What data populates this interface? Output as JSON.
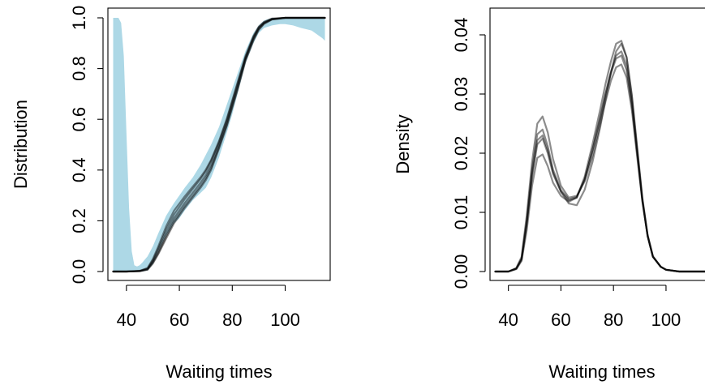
{
  "chart_data": [
    {
      "type": "line",
      "xlabel": "Waiting times",
      "ylabel": "Distribution",
      "xlim": [
        33,
        117
      ],
      "ylim": [
        0,
        1
      ],
      "x_ticks": [
        "40",
        "60",
        "80",
        "100"
      ],
      "y_ticks": [
        "0.0",
        "0.2",
        "0.4",
        "0.6",
        "0.8",
        "1.0"
      ],
      "band_color": "#ADD8E6",
      "line_color": "#000000",
      "band": {
        "x": [
          35,
          36,
          37,
          38,
          39,
          40,
          41,
          42,
          43,
          44,
          45,
          46,
          48,
          50,
          52,
          55,
          58,
          60,
          62,
          65,
          68,
          70,
          72,
          75,
          78,
          80,
          82,
          85,
          88,
          90,
          92,
          95,
          98,
          100,
          103,
          106,
          110,
          114,
          115
        ],
        "upper": [
          1.0,
          1.0,
          1.0,
          0.98,
          0.85,
          0.55,
          0.25,
          0.08,
          0.025,
          0.02,
          0.025,
          0.035,
          0.06,
          0.1,
          0.15,
          0.22,
          0.27,
          0.3,
          0.33,
          0.37,
          0.42,
          0.46,
          0.5,
          0.57,
          0.66,
          0.72,
          0.78,
          0.87,
          0.94,
          0.97,
          0.99,
          1.0,
          1.0,
          1.0,
          1.0,
          1.0,
          1.0,
          1.0,
          1.0
        ],
        "lower": [
          0,
          0,
          0,
          0,
          0,
          0,
          0,
          0,
          0,
          0,
          0,
          0,
          0.005,
          0.03,
          0.08,
          0.14,
          0.19,
          0.21,
          0.24,
          0.28,
          0.31,
          0.33,
          0.37,
          0.45,
          0.55,
          0.62,
          0.7,
          0.82,
          0.9,
          0.94,
          0.96,
          0.97,
          0.975,
          0.975,
          0.97,
          0.96,
          0.95,
          0.92,
          0.91
        ]
      },
      "x": [
        35,
        40,
        45,
        48,
        50,
        52,
        55,
        58,
        60,
        62,
        65,
        68,
        70,
        72,
        75,
        78,
        80,
        82,
        85,
        88,
        90,
        92,
        95,
        100,
        105,
        110,
        115
      ],
      "series": [
        {
          "values": [
            0,
            0,
            0.002,
            0.01,
            0.04,
            0.08,
            0.15,
            0.21,
            0.24,
            0.27,
            0.31,
            0.35,
            0.38,
            0.42,
            0.5,
            0.59,
            0.66,
            0.73,
            0.84,
            0.92,
            0.96,
            0.98,
            0.995,
            1.0,
            1.0,
            1.0,
            1.0
          ]
        },
        {
          "values": [
            0,
            0,
            0.002,
            0.012,
            0.045,
            0.09,
            0.165,
            0.225,
            0.255,
            0.285,
            0.325,
            0.365,
            0.395,
            0.435,
            0.51,
            0.6,
            0.67,
            0.74,
            0.845,
            0.925,
            0.962,
            0.982,
            0.996,
            1.0,
            1.0,
            1.0,
            1.0
          ]
        },
        {
          "values": [
            0,
            0,
            0.002,
            0.008,
            0.035,
            0.072,
            0.138,
            0.198,
            0.228,
            0.258,
            0.298,
            0.338,
            0.368,
            0.408,
            0.49,
            0.58,
            0.65,
            0.72,
            0.835,
            0.915,
            0.955,
            0.978,
            0.994,
            1.0,
            1.0,
            1.0,
            1.0
          ]
        },
        {
          "values": [
            0,
            0,
            0.003,
            0.014,
            0.05,
            0.098,
            0.178,
            0.24,
            0.268,
            0.296,
            0.334,
            0.372,
            0.402,
            0.44,
            0.515,
            0.605,
            0.675,
            0.745,
            0.85,
            0.928,
            0.965,
            0.984,
            0.997,
            1.0,
            1.0,
            1.0,
            1.0
          ]
        },
        {
          "values": [
            0,
            0,
            0.001,
            0.007,
            0.032,
            0.068,
            0.13,
            0.19,
            0.22,
            0.25,
            0.29,
            0.33,
            0.36,
            0.4,
            0.485,
            0.575,
            0.645,
            0.715,
            0.83,
            0.91,
            0.952,
            0.976,
            0.993,
            1.0,
            1.0,
            1.0,
            1.0
          ]
        }
      ]
    },
    {
      "type": "line",
      "xlabel": "Waiting times",
      "ylabel": "Density",
      "xlim": [
        33,
        117
      ],
      "ylim": [
        0,
        0.044
      ],
      "x_ticks": [
        "40",
        "60",
        "80",
        "100"
      ],
      "y_ticks": [
        "0.00",
        "0.01",
        "0.02",
        "0.03",
        "0.04"
      ],
      "line_color": "#000000",
      "x": [
        35,
        40,
        43,
        45,
        47,
        49,
        51,
        53,
        55,
        57,
        60,
        63,
        66,
        69,
        72,
        75,
        77,
        79,
        81,
        83,
        85,
        87,
        89,
        91,
        93,
        95,
        98,
        100,
        105,
        110,
        115
      ],
      "series": [
        {
          "values": [
            0,
            0,
            0.0005,
            0.002,
            0.008,
            0.016,
            0.0215,
            0.0225,
            0.02,
            0.0165,
            0.0135,
            0.012,
            0.0125,
            0.0155,
            0.0205,
            0.026,
            0.03,
            0.0335,
            0.036,
            0.0365,
            0.034,
            0.028,
            0.02,
            0.012,
            0.006,
            0.0025,
            0.0008,
            0.0003,
            0,
            0,
            0
          ]
        },
        {
          "values": [
            0,
            0,
            0.0006,
            0.0025,
            0.0095,
            0.0185,
            0.025,
            0.0262,
            0.0235,
            0.019,
            0.0145,
            0.0125,
            0.0128,
            0.0152,
            0.0195,
            0.025,
            0.0288,
            0.0322,
            0.0345,
            0.035,
            0.0328,
            0.0272,
            0.0195,
            0.0118,
            0.006,
            0.0025,
            0.0008,
            0.0003,
            0,
            0,
            0
          ]
        },
        {
          "values": [
            0,
            0,
            0.0004,
            0.0018,
            0.007,
            0.0145,
            0.0192,
            0.0198,
            0.0178,
            0.015,
            0.0128,
            0.0118,
            0.0125,
            0.016,
            0.0215,
            0.0275,
            0.0318,
            0.0355,
            0.0385,
            0.039,
            0.0362,
            0.0295,
            0.0208,
            0.0122,
            0.006,
            0.0025,
            0.0008,
            0.0003,
            0,
            0,
            0
          ]
        },
        {
          "values": [
            0,
            0,
            0.0005,
            0.0022,
            0.0088,
            0.0172,
            0.0232,
            0.024,
            0.0212,
            0.0172,
            0.0138,
            0.0122,
            0.0126,
            0.0156,
            0.0205,
            0.0262,
            0.0302,
            0.0338,
            0.0365,
            0.0372,
            0.0348,
            0.0286,
            0.0204,
            0.012,
            0.006,
            0.0025,
            0.0008,
            0.0003,
            0,
            0,
            0
          ]
        },
        {
          "values": [
            0,
            0,
            0.0005,
            0.0021,
            0.0082,
            0.0165,
            0.0222,
            0.023,
            0.0205,
            0.0168,
            0.0135,
            0.0115,
            0.0112,
            0.0138,
            0.0185,
            0.0245,
            0.0292,
            0.0335,
            0.0372,
            0.0385,
            0.0362,
            0.0298,
            0.0212,
            0.0125,
            0.0062,
            0.0026,
            0.0008,
            0.0003,
            0,
            0,
            0
          ]
        }
      ]
    }
  ]
}
